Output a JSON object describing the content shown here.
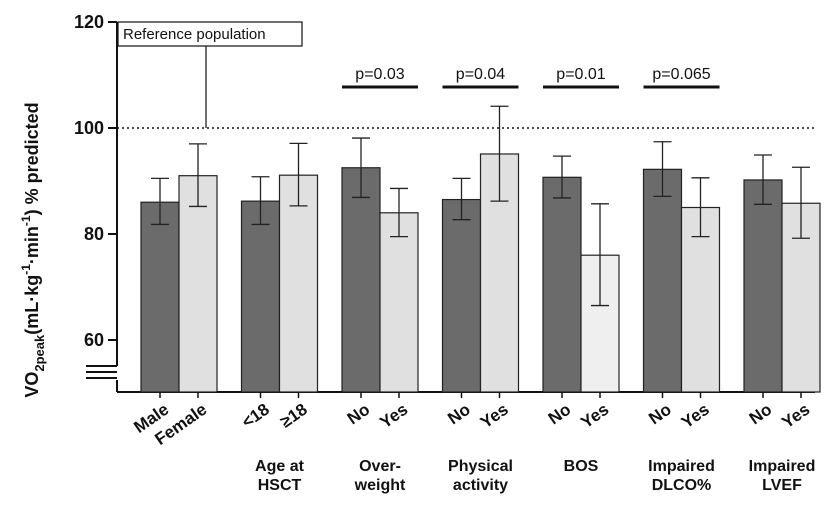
{
  "chart_data": {
    "type": "bar",
    "ylabel": {
      "main": "VO",
      "sub": "2peak",
      "mid1": "(mL·kg",
      "sup1": "-1",
      "mid2": "·min",
      "sup2": "-1",
      "tail": ") % predicted"
    },
    "ylim": [
      50,
      120
    ],
    "yticks": [
      60,
      80,
      100,
      120
    ],
    "axis_break": true,
    "reference_line": {
      "value": 100,
      "label": "Reference population",
      "style": "dotted"
    },
    "colors": {
      "dark": "#6b6b6b",
      "light": "#e0e0e0",
      "lighter": "#efefef"
    },
    "groups": [
      {
        "label": [
          "",
          ""
        ],
        "bars": [
          {
            "category": "Male",
            "value": 86.0,
            "err_low": 81.8,
            "err_high": 90.5,
            "shade": "dark"
          },
          {
            "category": "Female",
            "value": 91.0,
            "err_low": 85.2,
            "err_high": 97.0,
            "shade": "light"
          }
        ]
      },
      {
        "label": [
          "Age at",
          "HSCT"
        ],
        "bars": [
          {
            "category": "<18",
            "value": 86.2,
            "err_low": 81.8,
            "err_high": 90.8,
            "shade": "dark"
          },
          {
            "category": "≥18",
            "value": 91.1,
            "err_low": 85.3,
            "err_high": 97.1,
            "shade": "light"
          }
        ]
      },
      {
        "label": [
          "Over-",
          "weight"
        ],
        "pvalue": "p=0.03",
        "bars": [
          {
            "category": "No",
            "value": 92.5,
            "err_low": 86.9,
            "err_high": 98.1,
            "shade": "dark"
          },
          {
            "category": "Yes",
            "value": 84.0,
            "err_low": 79.5,
            "err_high": 88.6,
            "shade": "light"
          }
        ]
      },
      {
        "label": [
          "Physical",
          "activity"
        ],
        "pvalue": "p=0.04",
        "bars": [
          {
            "category": "No",
            "value": 86.5,
            "err_low": 82.7,
            "err_high": 90.5,
            "shade": "dark"
          },
          {
            "category": "Yes",
            "value": 95.1,
            "err_low": 86.2,
            "err_high": 104.1,
            "shade": "light"
          }
        ]
      },
      {
        "label": [
          "BOS",
          ""
        ],
        "pvalue": "p=0.01",
        "bars": [
          {
            "category": "No",
            "value": 90.7,
            "err_low": 86.8,
            "err_high": 94.7,
            "shade": "dark"
          },
          {
            "category": "Yes",
            "value": 76.0,
            "err_low": 66.5,
            "err_high": 85.7,
            "shade": "lighter"
          }
        ]
      },
      {
        "label": [
          "Impaired",
          "DLCO%"
        ],
        "pvalue": "p=0.065",
        "bars": [
          {
            "category": "No",
            "value": 92.2,
            "err_low": 87.1,
            "err_high": 97.4,
            "shade": "dark"
          },
          {
            "category": "Yes",
            "value": 85.0,
            "err_low": 79.5,
            "err_high": 90.6,
            "shade": "light"
          }
        ]
      },
      {
        "label": [
          "Impaired",
          "LVEF"
        ],
        "bars": [
          {
            "category": "No",
            "value": 90.2,
            "err_low": 85.6,
            "err_high": 94.9,
            "shade": "dark"
          },
          {
            "category": "Yes",
            "value": 85.8,
            "err_low": 79.2,
            "err_high": 92.6,
            "shade": "light"
          }
        ]
      }
    ]
  }
}
